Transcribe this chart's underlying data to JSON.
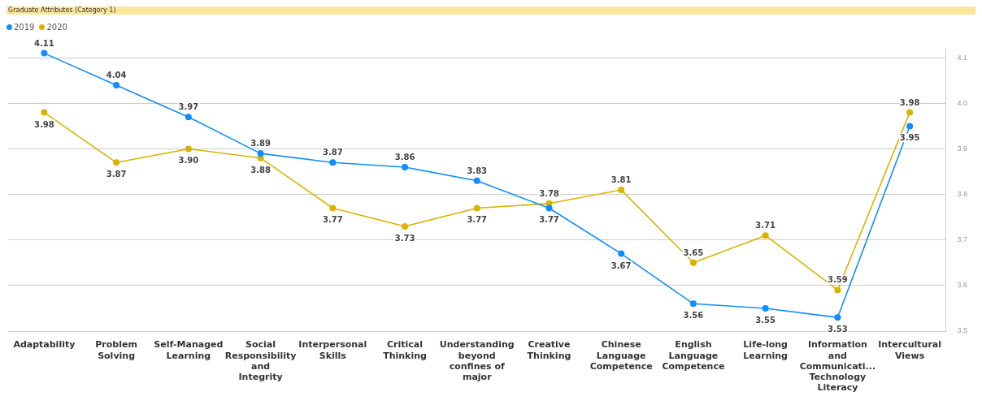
{
  "chart_data": {
    "type": "line",
    "title": "Graduate Attributes (Category 1)",
    "categories": [
      "Adaptability",
      "Problem Solving",
      "Self-Managed Learning",
      "Social Responsibility and Integrity",
      "Interpersonal Skills",
      "Critical Thinking",
      "Understanding beyond confines of major",
      "Creative Thinking",
      "Chinese Language Competence",
      "English Language Competence",
      "Life-long Learning",
      "Information and Communicati... Technology Literacy",
      "Intercultural Views"
    ],
    "series": [
      {
        "name": "2019",
        "color": "#118dff",
        "values": [
          4.11,
          4.04,
          3.97,
          3.89,
          3.87,
          3.86,
          3.83,
          3.77,
          3.67,
          3.56,
          3.55,
          3.53,
          3.95
        ],
        "value_labels": [
          "4.11",
          "4.04",
          "3.97",
          "3.89",
          "3.87",
          "3.86",
          "3.83",
          "3.77",
          "3.67",
          "3.56",
          "3.55",
          "3.53",
          "3.95"
        ]
      },
      {
        "name": "2020",
        "color": "#d9b300",
        "values": [
          3.98,
          3.87,
          3.9,
          3.88,
          3.77,
          3.73,
          3.77,
          3.78,
          3.81,
          3.65,
          3.71,
          3.59,
          3.98
        ],
        "value_labels": [
          "3.98",
          "3.87",
          "3.90",
          "3.88",
          "3.77",
          "3.73",
          "3.77",
          "3.78",
          "3.81",
          "3.65",
          "3.71",
          "3.59",
          "3.98"
        ]
      }
    ],
    "ylim": [
      3.5,
      4.12
    ],
    "yticks": [
      3.5,
      3.6,
      3.7,
      3.8,
      3.9,
      {
        "value": 4,
        "label": "4.0"
      },
      4.1
    ],
    "grid": "y",
    "legend": "top left",
    "marker": "circle",
    "line_style": "solid"
  }
}
